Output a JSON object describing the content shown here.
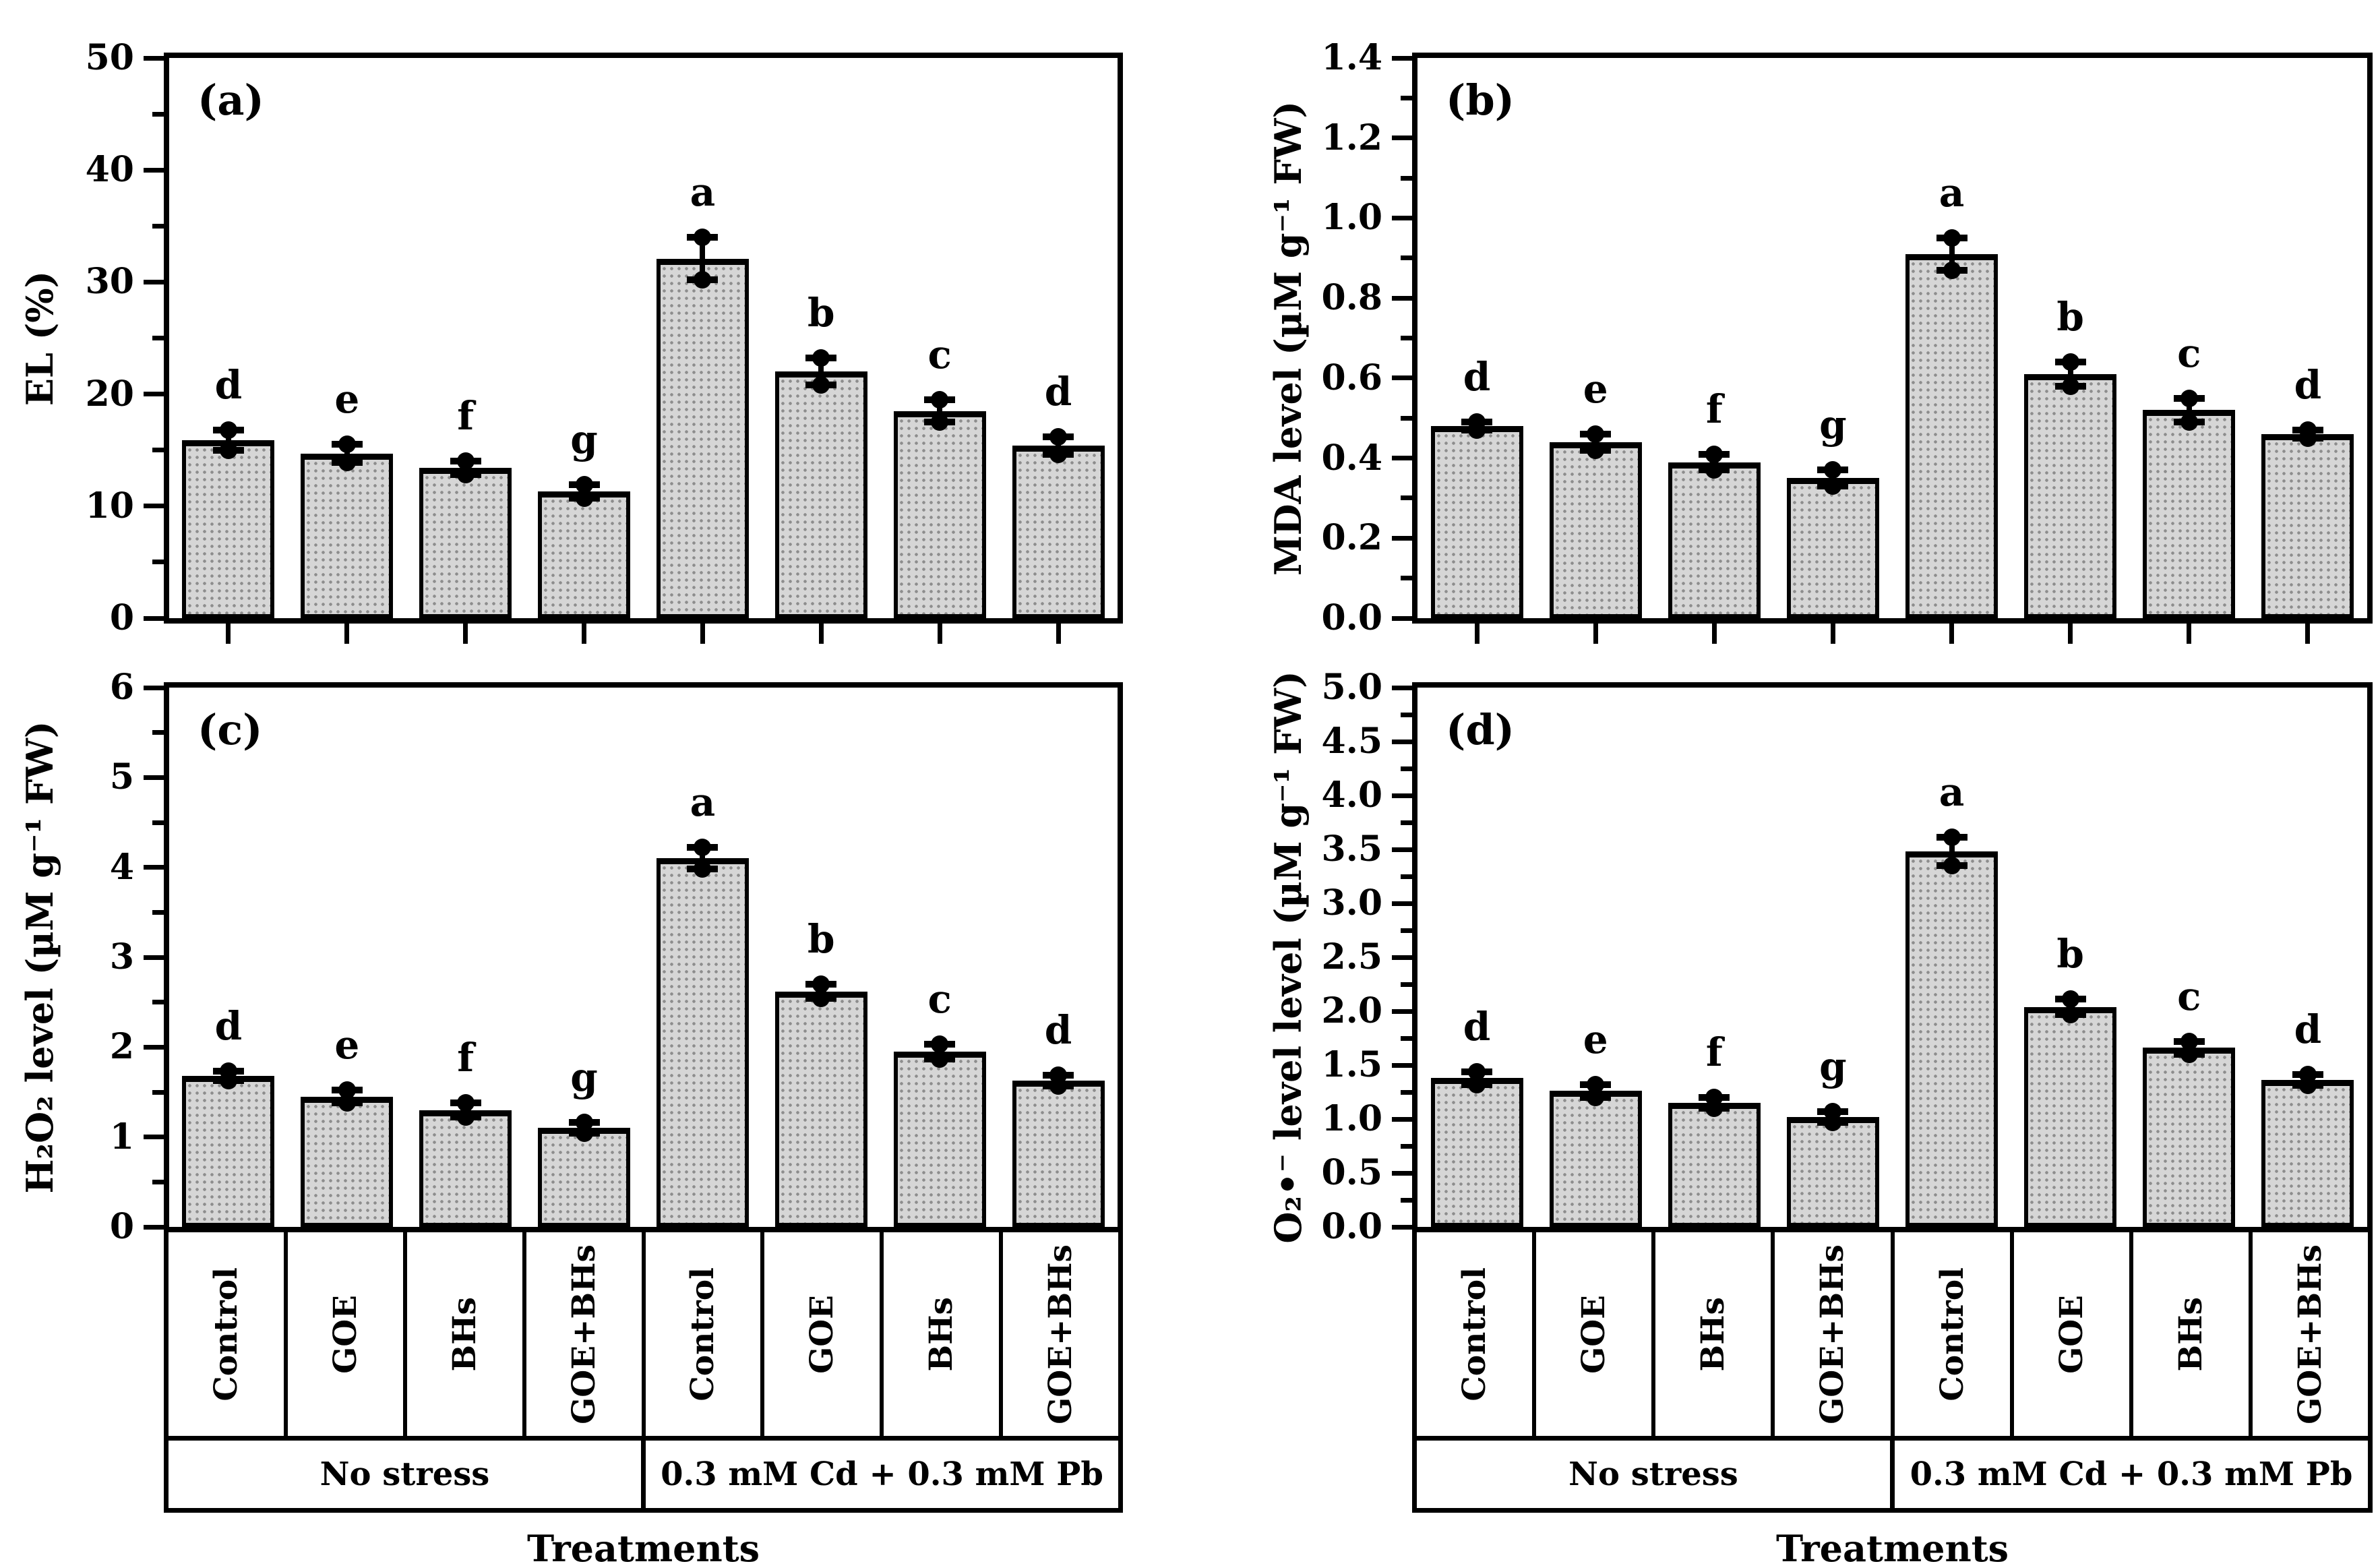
{
  "figure": {
    "background": "#ffffff",
    "bar_fill": "#d6d6d6",
    "bar_dot_color": "#8d8d8d",
    "line_color": "#000000"
  },
  "chart_data": [
    {
      "type": "bar",
      "id": "a",
      "panel_label": "(a)",
      "ylabel": "EL (%)",
      "xlabel": "",
      "ylim": [
        0,
        50
      ],
      "ytick_step": 10,
      "yminor_step": 5,
      "ytick_labels": [
        "0",
        "10",
        "20",
        "30",
        "40",
        "50"
      ],
      "grid": false,
      "legend": "none",
      "categories": [
        "Control",
        "GOE",
        "BHs",
        "GOE+BHs",
        "Control",
        "GOE",
        "BHs",
        "GOE+BHs"
      ],
      "condition_groups": [
        {
          "label": "No stress",
          "span": 4
        },
        {
          "label": "0.3 mM Cd + 0.3 mM Pb",
          "span": 4
        }
      ],
      "values": [
        15.9,
        14.7,
        13.4,
        11.3,
        32.1,
        22.0,
        18.5,
        15.4
      ],
      "errors": [
        0.9,
        0.8,
        0.6,
        0.6,
        1.9,
        1.2,
        1.0,
        0.8
      ],
      "sig_letters": [
        "d",
        "e",
        "f",
        "g",
        "a",
        "b",
        "c",
        "d"
      ],
      "has_x_table": false
    },
    {
      "type": "bar",
      "id": "b",
      "panel_label": "(b)",
      "ylabel": "MDA level (µM g⁻¹ FW)",
      "xlabel": "",
      "ylim": [
        0,
        1.4
      ],
      "ytick_step": 0.2,
      "yminor_step": 0.1,
      "ytick_labels": [
        "0.0",
        "0.2",
        "0.4",
        "0.6",
        "0.8",
        "1.0",
        "1.2",
        "1.4"
      ],
      "grid": false,
      "legend": "none",
      "categories": [
        "Control",
        "GOE",
        "BHs",
        "GOE+BHs",
        "Control",
        "GOE",
        "BHs",
        "GOE+BHs"
      ],
      "condition_groups": [
        {
          "label": "No stress",
          "span": 4
        },
        {
          "label": "0.3 mM Cd + 0.3 mM Pb",
          "span": 4
        }
      ],
      "values": [
        0.48,
        0.44,
        0.39,
        0.35,
        0.91,
        0.61,
        0.52,
        0.46
      ],
      "errors": [
        0.01,
        0.02,
        0.02,
        0.02,
        0.04,
        0.03,
        0.03,
        0.01
      ],
      "sig_letters": [
        "d",
        "e",
        "f",
        "g",
        "a",
        "b",
        "c",
        "d"
      ],
      "has_x_table": false
    },
    {
      "type": "bar",
      "id": "c",
      "panel_label": "(c)",
      "ylabel": "H₂O₂ level (µM g⁻¹ FW)",
      "xlabel": "Treatments",
      "ylim": [
        0,
        6
      ],
      "ytick_step": 1,
      "yminor_step": 0.5,
      "ytick_labels": [
        "0",
        "1",
        "2",
        "3",
        "4",
        "5",
        "6"
      ],
      "grid": false,
      "legend": "none",
      "categories": [
        "Control",
        "GOE",
        "BHs",
        "GOE+BHs",
        "Control",
        "GOE",
        "BHs",
        "GOE+BHs"
      ],
      "condition_groups": [
        {
          "label": "No stress",
          "span": 4
        },
        {
          "label": "0.3 mM Cd + 0.3 mM Pb",
          "span": 4
        }
      ],
      "values": [
        1.68,
        1.45,
        1.3,
        1.1,
        4.1,
        2.62,
        1.95,
        1.63
      ],
      "errors": [
        0.05,
        0.07,
        0.08,
        0.06,
        0.12,
        0.08,
        0.08,
        0.06
      ],
      "sig_letters": [
        "d",
        "e",
        "f",
        "g",
        "a",
        "b",
        "c",
        "d"
      ],
      "has_x_table": true
    },
    {
      "type": "bar",
      "id": "d",
      "panel_label": "(d)",
      "ylabel": "O₂•⁻ level level (µM g⁻¹ FW)",
      "xlabel": "Treatments",
      "ylim": [
        0,
        5
      ],
      "ytick_step": 0.5,
      "yminor_step": 0.25,
      "ytick_labels": [
        "0.0",
        "0.5",
        "1.0",
        "1.5",
        "2.0",
        "2.5",
        "3.0",
        "3.5",
        "4.0",
        "4.5",
        "5.0"
      ],
      "grid": false,
      "legend": "none",
      "categories": [
        "Control",
        "GOE",
        "BHs",
        "GOE+BHs",
        "Control",
        "GOE",
        "BHs",
        "GOE+BHs"
      ],
      "condition_groups": [
        {
          "label": "No stress",
          "span": 4
        },
        {
          "label": "0.3 mM Cd + 0.3 mM Pb",
          "span": 4
        }
      ],
      "values": [
        1.38,
        1.26,
        1.15,
        1.02,
        3.48,
        2.04,
        1.66,
        1.36
      ],
      "errors": [
        0.06,
        0.06,
        0.05,
        0.05,
        0.13,
        0.07,
        0.06,
        0.05
      ],
      "sig_letters": [
        "d",
        "e",
        "f",
        "g",
        "a",
        "b",
        "c",
        "d"
      ],
      "has_x_table": true
    }
  ],
  "x_table": {
    "treatments": [
      "Control",
      "GOE",
      "BHs",
      "GOE+BHs",
      "Control",
      "GOE",
      "BHs",
      "GOE+BHs"
    ],
    "groups": [
      {
        "label": "No stress",
        "span": 4
      },
      {
        "label": "0.3 mM Cd + 0.3 mM Pb",
        "span": 4
      }
    ],
    "axis_title": "Treatments"
  }
}
